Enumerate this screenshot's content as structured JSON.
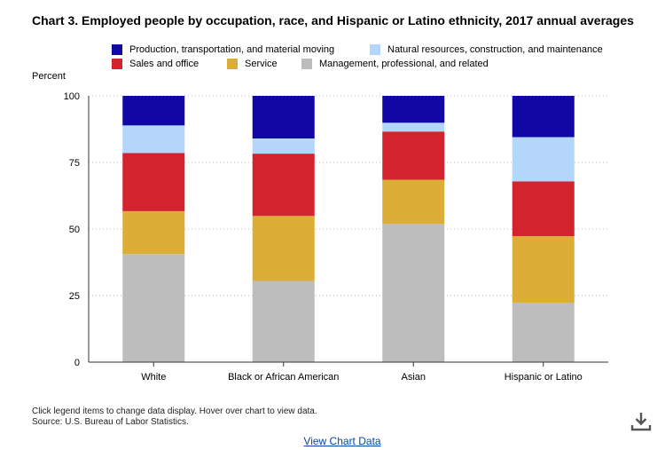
{
  "title": "Chart 3. Employed people by occupation, race, and Hispanic or Latino ethnicity, 2017 annual averages",
  "notes": {
    "instruction": "Click legend items to change data display. Hover over chart to view data.",
    "source": "Source: U.S. Bureau of Labor Statistics."
  },
  "view_chart_data_label": "View Chart Data",
  "icons": {
    "download": "download-icon"
  },
  "chart_data": {
    "type": "bar",
    "stacked": true,
    "title": "Chart 3. Employed people by occupation, race, and Hispanic or Latino ethnicity, 2017 annual averages",
    "ylabel": "Percent",
    "xlabel": "",
    "ylim": [
      0,
      100
    ],
    "yticks": [
      0,
      25,
      50,
      75,
      100
    ],
    "grid": true,
    "legend_position": "top",
    "categories": [
      "White",
      "Black or African American",
      "Asian",
      "Hispanic or Latino"
    ],
    "series": [
      {
        "name": "Management, professional, and related",
        "color": "#bdbdbd",
        "values": [
          40.6,
          30.5,
          51.9,
          22.3
        ]
      },
      {
        "name": "Service",
        "color": "#dcae37",
        "values": [
          16.1,
          24.4,
          16.6,
          25.0
        ]
      },
      {
        "name": "Sales and office",
        "color": "#d3232f",
        "values": [
          21.8,
          23.4,
          18.1,
          20.6
        ]
      },
      {
        "name": "Natural resources, construction, and maintenance",
        "color": "#b3d6fa",
        "values": [
          10.4,
          5.7,
          3.3,
          16.6
        ]
      },
      {
        "name": "Production, transportation, and material moving",
        "color": "#1107a5",
        "values": [
          11.1,
          16.0,
          10.1,
          15.5
        ]
      }
    ],
    "legend_order": [
      4,
      3,
      2,
      1,
      0
    ]
  }
}
